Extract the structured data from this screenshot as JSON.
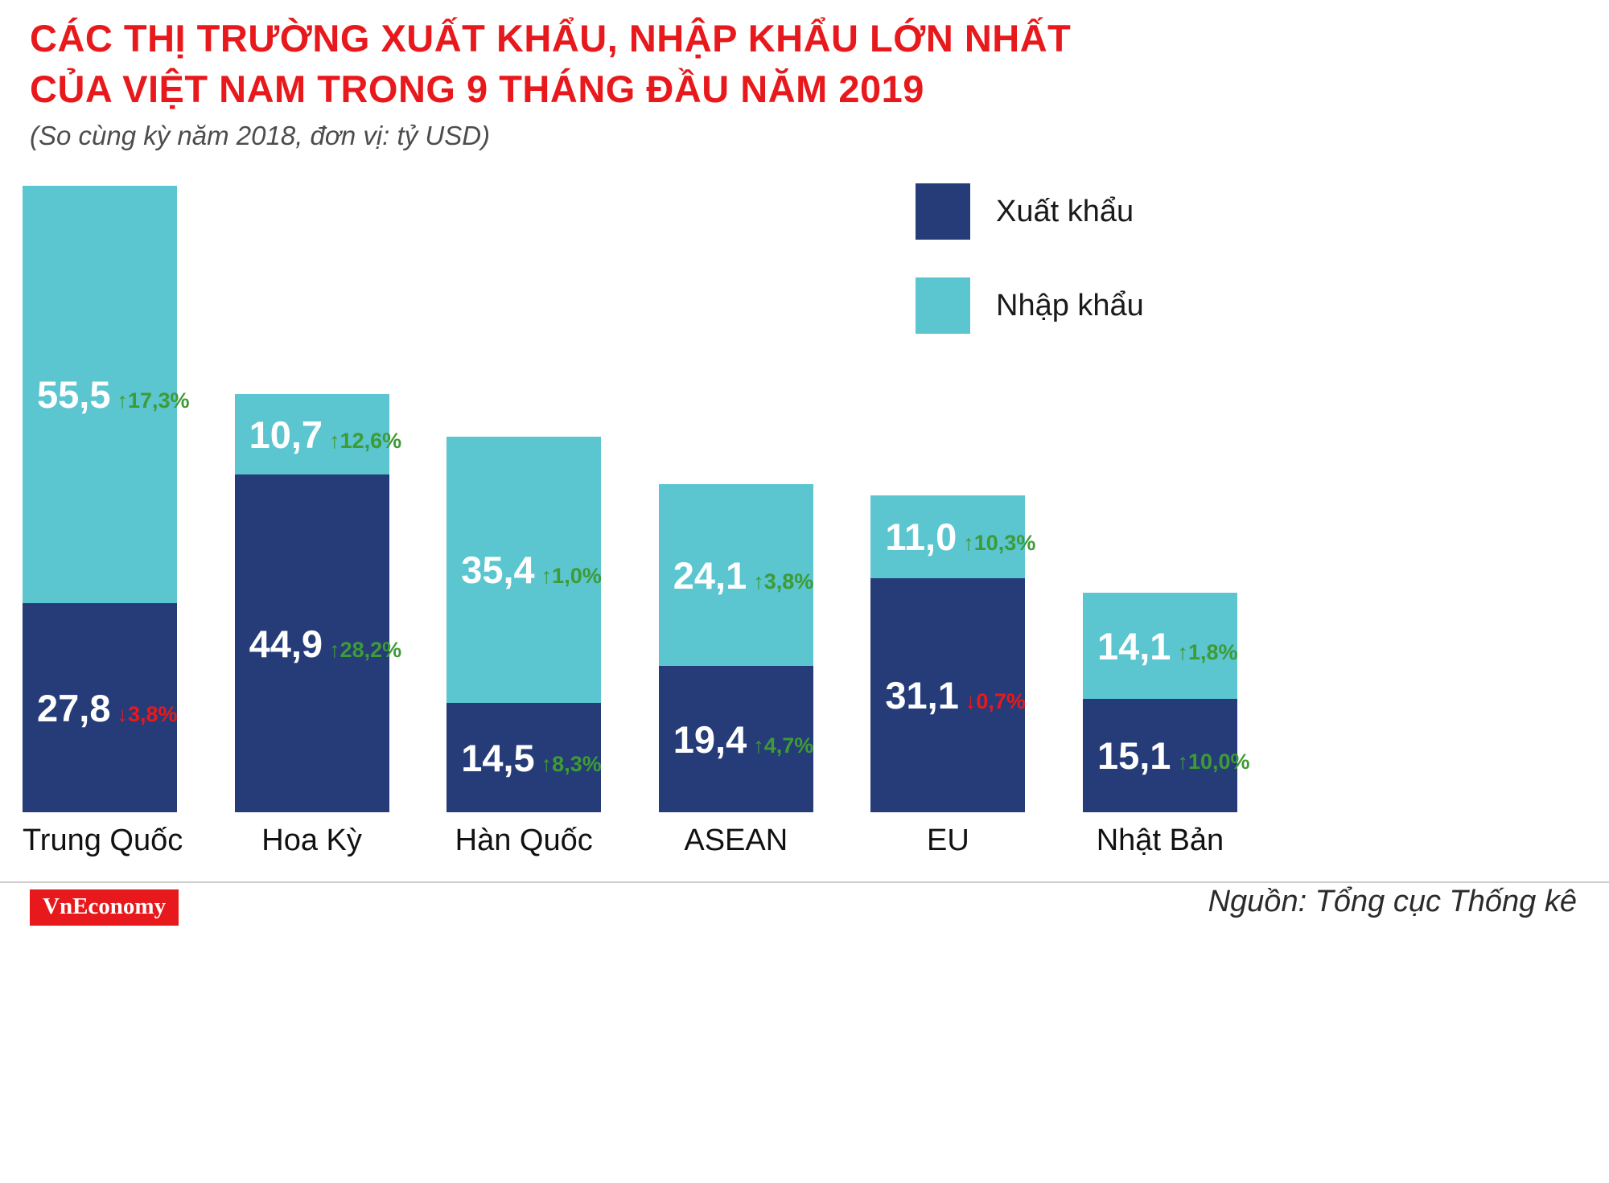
{
  "header": {
    "title_line1": "CÁC THỊ TRƯỜNG XUẤT KHẨU, NHẬP KHẨU LỚN NHẤT",
    "title_line2": "CỦA VIỆT NAM TRONG 9 THÁNG ĐẦU NĂM 2019",
    "subtitle": "(So cùng kỳ năm 2018, đơn vị: tỷ USD)"
  },
  "legend": [
    {
      "label": "Xuất khẩu",
      "color": "#253c78"
    },
    {
      "label": "Nhập khẩu",
      "color": "#5bc5d0"
    }
  ],
  "chart_data": {
    "type": "bar",
    "stacked": true,
    "title": "Các thị trường xuất khẩu, nhập khẩu lớn nhất của Việt Nam trong 9 tháng đầu năm 2019",
    "comparison": "So cùng kỳ năm 2018",
    "unit": "tỷ USD",
    "legend_position": "top-right",
    "grid": false,
    "categories": [
      "Trung Quốc",
      "Hoa Kỳ",
      "Hàn Quốc",
      "ASEAN",
      "EU",
      "Nhật Bản"
    ],
    "series": [
      {
        "name": "Xuất khẩu",
        "color": "#253c78",
        "values": [
          27.8,
          44.9,
          14.5,
          19.4,
          31.1,
          15.1
        ],
        "labels": [
          "27,8",
          "44,9",
          "14,5",
          "19,4",
          "31,1",
          "15,1"
        ],
        "changes": [
          {
            "dir": "down",
            "value": "3,8%"
          },
          {
            "dir": "up",
            "value": "28,2%"
          },
          {
            "dir": "up",
            "value": "8,3%"
          },
          {
            "dir": "up",
            "value": "4,7%"
          },
          {
            "dir": "down",
            "value": "0,7%"
          },
          {
            "dir": "up",
            "value": "10,0%"
          }
        ]
      },
      {
        "name": "Nhập khẩu",
        "color": "#5bc5d0",
        "values": [
          55.5,
          10.7,
          35.4,
          24.1,
          11.0,
          14.1
        ],
        "labels": [
          "55,5",
          "10,7",
          "35,4",
          "24,1",
          "11,0",
          "14,1"
        ],
        "changes": [
          {
            "dir": "up",
            "value": "17,3%"
          },
          {
            "dir": "up",
            "value": "12,6%"
          },
          {
            "dir": "up",
            "value": "1,0%"
          },
          {
            "dir": "up",
            "value": "3,8%"
          },
          {
            "dir": "up",
            "value": "10,3%"
          },
          {
            "dir": "up",
            "value": "1,8%"
          }
        ]
      }
    ],
    "colors": {
      "title_red": "#e8191c",
      "change_up_green": "#3e9b35",
      "change_down_red": "#e8191c"
    }
  },
  "footer": {
    "logo": "VnEconomy",
    "source": "Nguồn: Tổng cục Thống kê"
  }
}
